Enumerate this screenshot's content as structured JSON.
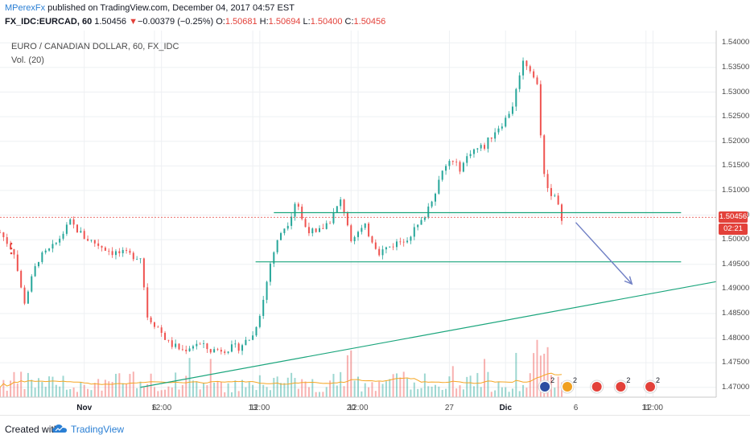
{
  "header": {
    "publisher": "MPerexFx",
    "published_text": " published on TradingView.com, December 04, 2017 04:57 EST",
    "symbol": "FX_IDC:EURCAD, 60",
    "last": "1.50456",
    "change_arrow": "▼",
    "change": "−0.00379 (−0.25%)",
    "o_label": "O:",
    "o_value": "1.50681",
    "h_label": "H:",
    "h_value": "1.50694",
    "l_label": "L:",
    "l_value": "1.50400",
    "c_label": "C:",
    "c_value": "1.50456"
  },
  "legend": {
    "title": "EURO / CANADIAN DOLLAR, 60, FX_IDC",
    "volume": "Vol. (20)"
  },
  "price_scale": {
    "last_price_tag": "1.50456",
    "countdown_tag": "02:21"
  },
  "footer": {
    "created_with": "Created with",
    "brand": "TradingView"
  },
  "colors": {
    "up": "#26a69a",
    "down": "#ef5350",
    "annotation_line": "#1aa57c",
    "arrow": "#6f7fc4",
    "volume_ma": "#f5a623",
    "last_price_line": "#e3413a"
  },
  "chart_data": {
    "type": "candlestick",
    "title": "EURO / CANADIAN DOLLAR, 60, FX_IDC",
    "y_ticks": [
      "1.54000",
      "1.53500",
      "1.53000",
      "1.52500",
      "1.52000",
      "1.51500",
      "1.51000",
      "1.50500",
      "1.50000",
      "1.49500",
      "1.49000",
      "1.48500",
      "1.48000",
      "1.47500",
      "1.47000"
    ],
    "ylim": [
      1.468,
      1.5425
    ],
    "x_ticks": [
      {
        "label": "Nov",
        "day": 0,
        "bold": true
      },
      {
        "label": "6",
        "day": 5,
        "bold": false
      },
      {
        "label": "12:00",
        "day": 5.5,
        "bold": false
      },
      {
        "label": "13",
        "day": 12,
        "bold": false
      },
      {
        "label": "12:00",
        "day": 12.5,
        "bold": false
      },
      {
        "label": "20",
        "day": 19,
        "bold": false
      },
      {
        "label": "12:00",
        "day": 19.5,
        "bold": false
      },
      {
        "label": "27",
        "day": 26,
        "bold": false
      },
      {
        "label": "Dic",
        "day": 30,
        "bold": true
      },
      {
        "label": "6",
        "day": 35,
        "bold": false
      },
      {
        "label": "11",
        "day": 40,
        "bold": false
      },
      {
        "label": "12:00",
        "day": 40.5,
        "bold": false
      }
    ],
    "xlim_days": [
      -6,
      45
    ],
    "price_path": [
      {
        "day": -6,
        "price": 1.5015
      },
      {
        "day": -5,
        "price": 1.4975
      },
      {
        "day": -4.3,
        "price": 1.487
      },
      {
        "day": -3.3,
        "price": 1.496
      },
      {
        "day": -2.2,
        "price": 1.4985
      },
      {
        "day": -1,
        "price": 1.5035
      },
      {
        "day": 0,
        "price": 1.5005
      },
      {
        "day": 2,
        "price": 1.4975
      },
      {
        "day": 3,
        "price": 1.497
      },
      {
        "day": 4,
        "price": 1.4965
      },
      {
        "day": 4.5,
        "price": 1.4845
      },
      {
        "day": 5.3,
        "price": 1.482
      },
      {
        "day": 6,
        "price": 1.479
      },
      {
        "day": 7,
        "price": 1.4775
      },
      {
        "day": 8,
        "price": 1.479
      },
      {
        "day": 9,
        "price": 1.4775
      },
      {
        "day": 10,
        "price": 1.4778
      },
      {
        "day": 11,
        "price": 1.4782
      },
      {
        "day": 12,
        "price": 1.4805
      },
      {
        "day": 12.7,
        "price": 1.487
      },
      {
        "day": 13.3,
        "price": 1.496
      },
      {
        "day": 14,
        "price": 1.5015
      },
      {
        "day": 14.6,
        "price": 1.504
      },
      {
        "day": 15.1,
        "price": 1.5085
      },
      {
        "day": 15.6,
        "price": 1.503
      },
      {
        "day": 16.5,
        "price": 1.501
      },
      {
        "day": 17.5,
        "price": 1.504
      },
      {
        "day": 18.3,
        "price": 1.508
      },
      {
        "day": 19,
        "price": 1.5005
      },
      {
        "day": 20,
        "price": 1.5025
      },
      {
        "day": 21,
        "price": 1.4975
      },
      {
        "day": 22,
        "price": 1.499
      },
      {
        "day": 23,
        "price": 1.5005
      },
      {
        "day": 24,
        "price": 1.5035
      },
      {
        "day": 24.7,
        "price": 1.508
      },
      {
        "day": 25.4,
        "price": 1.513
      },
      {
        "day": 26,
        "price": 1.516
      },
      {
        "day": 26.8,
        "price": 1.5145
      },
      {
        "day": 27.5,
        "price": 1.518
      },
      {
        "day": 28.5,
        "price": 1.519
      },
      {
        "day": 29.2,
        "price": 1.522
      },
      {
        "day": 30,
        "price": 1.5245
      },
      {
        "day": 30.6,
        "price": 1.528
      },
      {
        "day": 31,
        "price": 1.534
      },
      {
        "day": 31.3,
        "price": 1.5365
      },
      {
        "day": 31.8,
        "price": 1.5345
      },
      {
        "day": 32.3,
        "price": 1.531
      },
      {
        "day": 32.6,
        "price": 1.516
      },
      {
        "day": 33,
        "price": 1.5105
      },
      {
        "day": 33.5,
        "price": 1.5085
      },
      {
        "day": 34,
        "price": 1.5046
      }
    ],
    "annotations": {
      "upper_horizontal": {
        "from_day": 13.5,
        "to_day": 42.5,
        "price": 1.5055
      },
      "lower_horizontal": {
        "from_day": 12.2,
        "to_day": 42.5,
        "price": 1.4955
      },
      "trendline": {
        "from_day": 4,
        "from_price": 1.47,
        "to_day": 46,
        "to_price": 1.492
      },
      "projection_arrow": {
        "from_day": 35,
        "from_price": 1.5035,
        "to_day": 39,
        "to_price": 1.491
      }
    }
  }
}
